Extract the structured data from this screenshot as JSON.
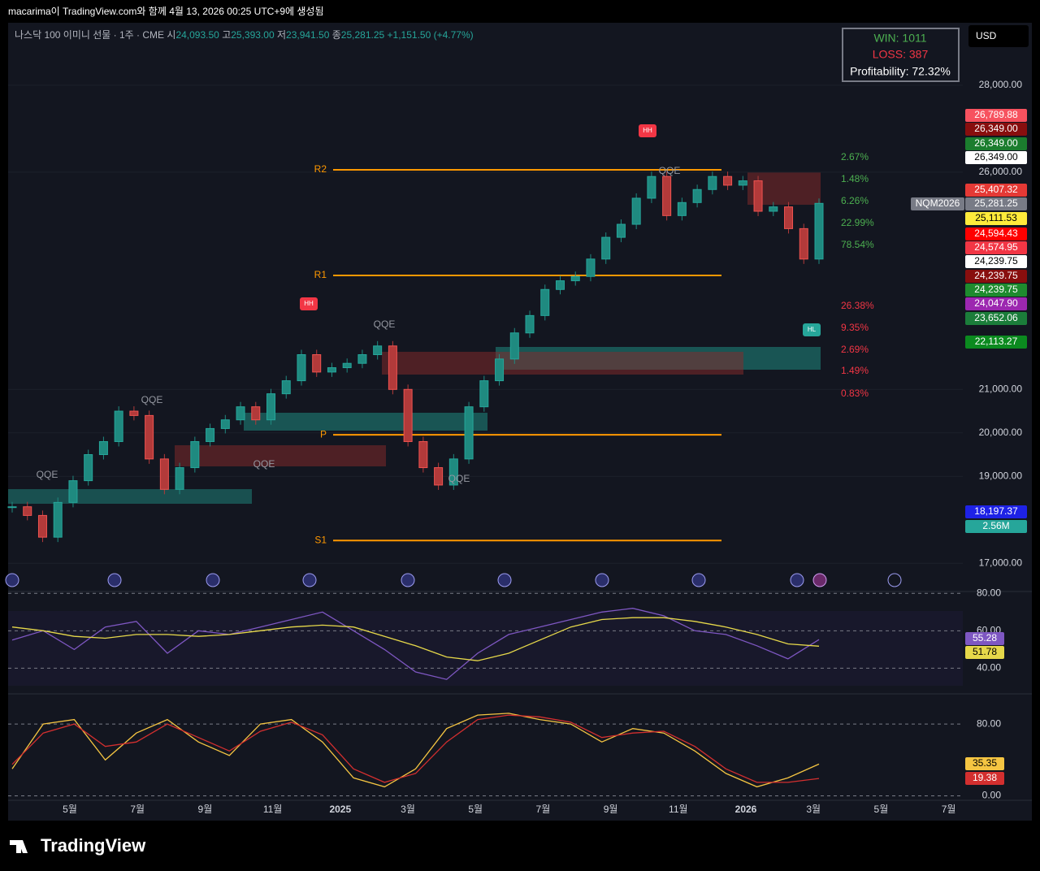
{
  "header": {
    "caption": "macarima이 TradingView.com와 함께 4월 13, 2026 00:25 UTC+9에 생성됨",
    "symbol": "나스닥 100 이미니 선물 · 1주 · CME",
    "open_label": "시",
    "open": "24,093.50",
    "high_label": "고",
    "high": "25,393.00",
    "low_label": "저",
    "low": "23,941.50",
    "close_label": "종",
    "close": "25,281.25",
    "change": "+1,151.50 (+4.77%)",
    "currency": "USD",
    "logo": "TradingView"
  },
  "stats": {
    "win": "WIN: 1011",
    "loss": "LOSS: 387",
    "profitability": "Profitability: 72.32%"
  },
  "chart_data": {
    "type": "candlestick",
    "name": "NQM2026",
    "values": [
      18300,
      18100,
      17600,
      18400,
      18900,
      19500,
      19800,
      20500,
      20400,
      19400,
      18700,
      19200,
      19800,
      20100,
      20300,
      20600,
      20300,
      20900,
      21200,
      21800,
      21400,
      21500,
      21600,
      21800,
      22000,
      21000,
      19800,
      19200,
      18800,
      19400,
      20600,
      21200,
      21700,
      22300,
      22700,
      23300,
      23500,
      23600,
      24000,
      24500,
      24800,
      25400,
      25900,
      25000,
      25300,
      25600,
      25900,
      25700,
      25800,
      25100,
      25200,
      24700,
      24000,
      25281.25
    ],
    "up_color": "#1f8a80",
    "down_color": "#b23a3a",
    "ylim": [
      16350,
      29400
    ],
    "yticks": [
      {
        "value": 28000,
        "label": "28,000.00"
      },
      {
        "value": 26000,
        "label": "26,000.00"
      },
      {
        "value": 21000,
        "label": "21,000.00"
      },
      {
        "value": 20000,
        "label": "20,000.00"
      },
      {
        "value": 19000,
        "label": "19,000.00"
      },
      {
        "value": 17000,
        "label": "17,000.00"
      }
    ],
    "xticks": [
      "5월",
      "7월",
      "9월",
      "11월",
      "2025",
      "3월",
      "5월",
      "7월",
      "9월",
      "11월",
      "2026",
      "3월",
      "5월",
      "7월"
    ],
    "pivots": [
      {
        "name": "R2",
        "value": 26054
      },
      {
        "name": "R1",
        "value": 23622
      },
      {
        "name": "P",
        "value": 19955
      },
      {
        "name": "S1",
        "value": 17523
      }
    ],
    "fib_labels": [
      {
        "label": "2.67%",
        "color": "#4caf50"
      },
      {
        "label": "1.48%",
        "color": "#4caf50"
      },
      {
        "label": "6.26%",
        "color": "#4caf50"
      },
      {
        "label": "22.99%",
        "color": "#4caf50"
      },
      {
        "label": "78.54%",
        "color": "#4caf50"
      },
      {
        "label": "26.38%",
        "color": "#f23645"
      },
      {
        "label": "9.35%",
        "color": "#f23645"
      },
      {
        "label": "2.69%",
        "color": "#f23645"
      },
      {
        "label": "1.49%",
        "color": "#f23645"
      },
      {
        "label": "0.83%",
        "color": "#f23645"
      }
    ],
    "annotations": [
      "QQE",
      "QQE",
      "QQE",
      "QQE",
      "QQE",
      "QQE",
      "HH",
      "HH",
      "HL"
    ],
    "price_labels": [
      {
        "value": 26789.88,
        "label": "26,789.88",
        "color": "#f7525f"
      },
      {
        "value": 26349,
        "label": "26,349.00",
        "color": "#880e0e"
      },
      {
        "value": 26349,
        "label": "26,349.00",
        "color": "#1b7d2e"
      },
      {
        "value": 26349,
        "label": "26,349.00",
        "color": "#ffffff"
      },
      {
        "value": 25407.32,
        "label": "25,407.32",
        "color": "#e53935"
      },
      {
        "value": 25281.25,
        "label": "25,281.25",
        "color": "#787b86"
      },
      {
        "value": 25111.53,
        "label": "25,111.53",
        "color": "#ffeb3b"
      },
      {
        "value": 24594.43,
        "label": "24,594.43",
        "color": "#ff0000"
      },
      {
        "value": 24574.95,
        "label": "24,574.95",
        "color": "#f23645"
      },
      {
        "value": 24239.75,
        "label": "24,239.75",
        "color": "#ffffff"
      },
      {
        "value": 24239.75,
        "label": "24,239.75",
        "color": "#880e0e"
      },
      {
        "value": 24239.75,
        "label": "24,239.75",
        "color": "#1e8b2e"
      },
      {
        "value": 24047.9,
        "label": "24,047.90",
        "color": "#9c27b0"
      },
      {
        "value": 23652.06,
        "label": "23,652.06",
        "color": "#1b7d3a"
      },
      {
        "value": 22113.27,
        "label": "22,113.27",
        "color": "#0b8a1f"
      },
      {
        "value": 18197.37,
        "label": "18,197.37",
        "color": "#1e22e6"
      },
      {
        "label": "2.56M",
        "color": "#26a69a"
      }
    ]
  },
  "rsi": {
    "type": "line",
    "ylim": [
      28,
      81
    ],
    "yticks": [
      {
        "value": 80,
        "label": "80.00"
      },
      {
        "value": 60,
        "label": "60.00"
      },
      {
        "value": 40,
        "label": "40.00"
      }
    ],
    "series": [
      {
        "name": "RSI",
        "color": "#7e57c2",
        "values": [
          55,
          60,
          50,
          62,
          65,
          48,
          60,
          58,
          62,
          66,
          70,
          60,
          50,
          38,
          34,
          48,
          58,
          62,
          66,
          70,
          72,
          68,
          60,
          58,
          52,
          45,
          55.28
        ],
        "value_label": "55.28"
      },
      {
        "name": "MA",
        "color": "#e6d84a",
        "values": [
          62,
          60,
          57,
          56,
          58,
          58,
          57,
          58,
          60,
          62,
          63,
          62,
          57,
          52,
          46,
          44,
          48,
          55,
          62,
          66,
          67,
          67,
          65,
          62,
          58,
          53,
          51.78
        ],
        "value_label": "51.78"
      }
    ]
  },
  "stoch": {
    "type": "line",
    "ylim": [
      -5,
      110
    ],
    "yticks": [
      {
        "value": 80,
        "label": "80.00"
      },
      {
        "value": 0,
        "label": "0.00"
      }
    ],
    "series": [
      {
        "name": "K",
        "color": "#f5c542",
        "values": [
          30,
          80,
          85,
          40,
          70,
          85,
          60,
          45,
          80,
          85,
          60,
          20,
          10,
          30,
          75,
          90,
          92,
          85,
          80,
          60,
          75,
          70,
          50,
          25,
          10,
          20,
          35.35
        ],
        "value_label": "35.35"
      },
      {
        "name": "D",
        "color": "#d32f2f",
        "values": [
          35,
          70,
          80,
          55,
          60,
          80,
          65,
          50,
          72,
          82,
          68,
          30,
          15,
          25,
          60,
          85,
          90,
          88,
          82,
          65,
          70,
          72,
          55,
          30,
          15,
          15,
          19.38
        ],
        "value_label": "19.38"
      }
    ]
  }
}
